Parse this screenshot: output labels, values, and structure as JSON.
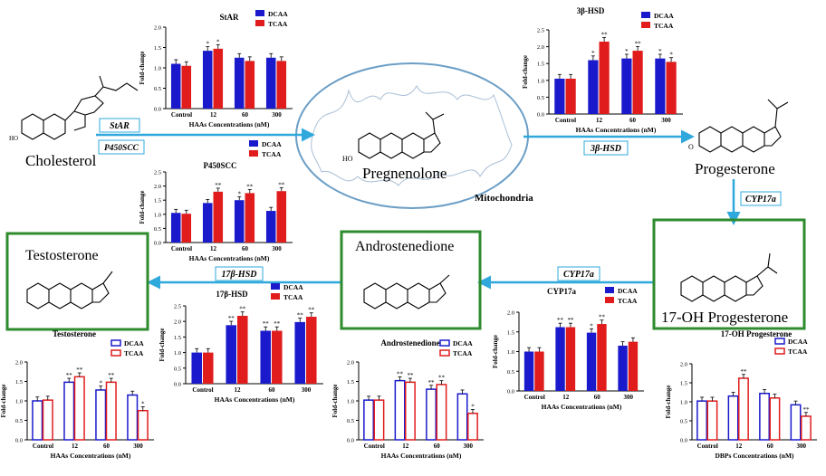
{
  "colors": {
    "dcaa": "#1a1acc",
    "tcaa": "#e01c1c",
    "arrow": "#2fa8dc",
    "box_green": "#2e8b2e",
    "label_box": "#2fa8dc"
  },
  "compounds": {
    "cholesterol": "Cholesterol",
    "pregnenolone": "Pregnenolone",
    "mitochondria": "Mitochondria",
    "progesterone": "Progesterone",
    "oh_progesterone": "17-OH Progesterone",
    "androstenedione": "Androstenedione",
    "testosterone": "Testosterone"
  },
  "enzymes": {
    "star": "StAR",
    "p450scc": "P450SCC",
    "hsd3b": "3β-HSD",
    "cyp17a_1": "CYP17a",
    "cyp17a_2": "CYP17a",
    "hsd17b": "17β-HSD"
  },
  "chart_data": [
    {
      "id": "star",
      "type": "bar",
      "title": "StAR",
      "xlabel": "HAAs Concentrations (nM)",
      "ylabel": "Fold-change",
      "ylim": [
        0,
        2.0
      ],
      "yticks": [
        "0.0",
        "0.5",
        "1.0",
        "1.5",
        "2.0"
      ],
      "categories": [
        "Control",
        "12",
        "60",
        "300"
      ],
      "style": "filled",
      "series": [
        {
          "name": "DCAA",
          "values": [
            1.1,
            1.42,
            1.25,
            1.25
          ],
          "sig": [
            "",
            "*",
            "",
            ""
          ]
        },
        {
          "name": "TCAA",
          "values": [
            1.05,
            1.47,
            1.17,
            1.17
          ],
          "sig": [
            "",
            "*",
            "",
            ""
          ]
        }
      ]
    },
    {
      "id": "p450scc",
      "type": "bar",
      "title": "P450SCC",
      "xlabel": "HAAs Concentrations (nM)",
      "ylabel": "Fold-change",
      "ylim": [
        0,
        2.5
      ],
      "yticks": [
        "0.0",
        "0.5",
        "1.0",
        "1.5",
        "2.0",
        "2.5"
      ],
      "categories": [
        "Control",
        "12",
        "60",
        "300"
      ],
      "style": "filled",
      "series": [
        {
          "name": "DCAA",
          "values": [
            1.05,
            1.4,
            1.5,
            1.12
          ],
          "sig": [
            "",
            "",
            "*",
            ""
          ]
        },
        {
          "name": "TCAA",
          "values": [
            1.02,
            1.8,
            1.75,
            1.82
          ],
          "sig": [
            "",
            "**",
            "**",
            "**"
          ]
        }
      ]
    },
    {
      "id": "hsd3b",
      "type": "bar",
      "title": "3β-HSD",
      "xlabel": "HAAs Concentrations (nM)",
      "ylabel": "Fold-change",
      "ylim": [
        0,
        2.5
      ],
      "yticks": [
        "0.0",
        "0.5",
        "1.0",
        "1.5",
        "2.0",
        "2.5"
      ],
      "categories": [
        "Control",
        "12",
        "60",
        "300"
      ],
      "style": "filled",
      "series": [
        {
          "name": "DCAA",
          "values": [
            1.05,
            1.6,
            1.65,
            1.65
          ],
          "sig": [
            "",
            "*",
            "*",
            "*"
          ]
        },
        {
          "name": "TCAA",
          "values": [
            1.05,
            2.15,
            1.88,
            1.55
          ],
          "sig": [
            "",
            "**",
            "**",
            "*"
          ]
        }
      ]
    },
    {
      "id": "cyp17a",
      "type": "bar",
      "title": "CYP17a",
      "xlabel": "HAAs Concentrations (nM)",
      "ylabel": "Fold-change",
      "ylim": [
        0,
        2.0
      ],
      "yticks": [
        "0.0",
        "0.5",
        "1.0",
        "1.5",
        "2.0"
      ],
      "categories": [
        "Control",
        "12",
        "60",
        "300"
      ],
      "style": "filled",
      "series": [
        {
          "name": "DCAA",
          "values": [
            1.0,
            1.62,
            1.48,
            1.15
          ],
          "sig": [
            "",
            "**",
            "*",
            ""
          ]
        },
        {
          "name": "TCAA",
          "values": [
            1.0,
            1.62,
            1.7,
            1.25
          ],
          "sig": [
            "",
            "**",
            "**",
            ""
          ]
        }
      ]
    },
    {
      "id": "hsd17b",
      "type": "bar",
      "title": "17β-HSD",
      "xlabel": "HAAs Concentrations (nM)",
      "ylabel": "Fold-change",
      "ylim": [
        0,
        2.5
      ],
      "yticks": [
        "0.0",
        "0.5",
        "1.0",
        "1.5",
        "2.0",
        "2.5"
      ],
      "categories": [
        "Control",
        "12",
        "60",
        "300"
      ],
      "style": "filled",
      "series": [
        {
          "name": "DCAA",
          "values": [
            1.0,
            1.88,
            1.7,
            1.98
          ],
          "sig": [
            "",
            "**",
            "**",
            "**"
          ]
        },
        {
          "name": "TCAA",
          "values": [
            1.0,
            2.18,
            1.7,
            2.15
          ],
          "sig": [
            "",
            "**",
            "**",
            "**"
          ]
        }
      ]
    },
    {
      "id": "testosterone",
      "type": "bar",
      "title": "Testosterone",
      "xlabel": "HAAs Concentrations (nM)",
      "ylabel": "Fold-change",
      "ylim": [
        0,
        2.0
      ],
      "yticks": [
        "0.0",
        "0.5",
        "1.0",
        "1.5",
        "2.0"
      ],
      "categories": [
        "Control",
        "12",
        "60",
        "300"
      ],
      "style": "outline",
      "series": [
        {
          "name": "DCAA",
          "values": [
            1.0,
            1.48,
            1.28,
            1.15
          ],
          "sig": [
            "",
            "**",
            "*",
            ""
          ]
        },
        {
          "name": "TCAA",
          "values": [
            1.02,
            1.62,
            1.48,
            0.75
          ],
          "sig": [
            "",
            "**",
            "**",
            "*"
          ]
        }
      ]
    },
    {
      "id": "androstenedione",
      "type": "bar",
      "title": "Androstenedione",
      "xlabel": "HAAs Concentrations (nM)",
      "ylabel": "Fold-change",
      "ylim": [
        0,
        2.0
      ],
      "yticks": [
        "0.0",
        "0.5",
        "1.0",
        "1.5",
        "2.0"
      ],
      "categories": [
        "Control",
        "12",
        "60",
        "300"
      ],
      "style": "outline",
      "series": [
        {
          "name": "DCAA",
          "values": [
            1.02,
            1.52,
            1.3,
            1.18
          ],
          "sig": [
            "",
            "**",
            "**",
            ""
          ]
        },
        {
          "name": "TCAA",
          "values": [
            1.02,
            1.48,
            1.42,
            0.68
          ],
          "sig": [
            "",
            "**",
            "**",
            "*"
          ]
        }
      ]
    },
    {
      "id": "oh_progesterone",
      "type": "bar",
      "title": "17-OH Progesterone",
      "xlabel": "DBPs Concentrations (nM)",
      "ylabel": "Fold-change",
      "ylim": [
        0,
        2.0
      ],
      "yticks": [
        "0.0",
        "0.5",
        "1.0",
        "1.5",
        "2.0"
      ],
      "categories": [
        "Control",
        "12",
        "60",
        "300"
      ],
      "style": "outline",
      "series": [
        {
          "name": "DCAA",
          "values": [
            1.02,
            1.15,
            1.22,
            0.92
          ],
          "sig": [
            "",
            "",
            "",
            ""
          ]
        },
        {
          "name": "TCAA",
          "values": [
            1.02,
            1.62,
            1.1,
            0.62
          ],
          "sig": [
            "",
            "**",
            "",
            "**"
          ]
        }
      ]
    }
  ]
}
